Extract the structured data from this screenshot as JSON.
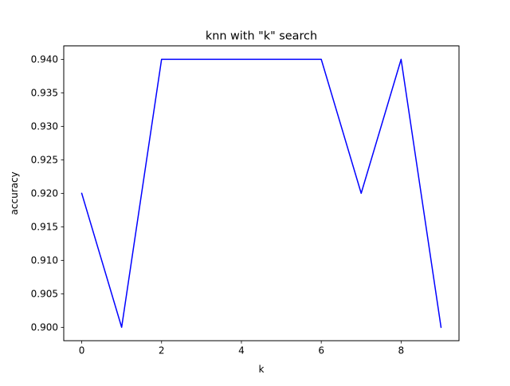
{
  "chart_data": {
    "type": "line",
    "title": "knn with \"k\" search",
    "xlabel": "k",
    "ylabel": "accuracy",
    "xlim": [
      -0.45,
      9.45
    ],
    "ylim": [
      0.898,
      0.942
    ],
    "xticks": [
      0,
      2,
      4,
      6,
      8
    ],
    "xtick_labels": [
      "0",
      "2",
      "4",
      "6",
      "8"
    ],
    "yticks": [
      0.9,
      0.905,
      0.91,
      0.915,
      0.92,
      0.925,
      0.93,
      0.935,
      0.94
    ],
    "ytick_labels": [
      "0.900",
      "0.905",
      "0.910",
      "0.915",
      "0.920",
      "0.925",
      "0.930",
      "0.935",
      "0.940"
    ],
    "grid": false,
    "legend": false,
    "series": [
      {
        "color": "#0000ff",
        "x": [
          0,
          1,
          2,
          3,
          4,
          5,
          6,
          7,
          8,
          9
        ],
        "values": [
          0.92,
          0.9,
          0.94,
          0.94,
          0.94,
          0.94,
          0.94,
          0.92,
          0.94,
          0.9
        ]
      }
    ]
  }
}
